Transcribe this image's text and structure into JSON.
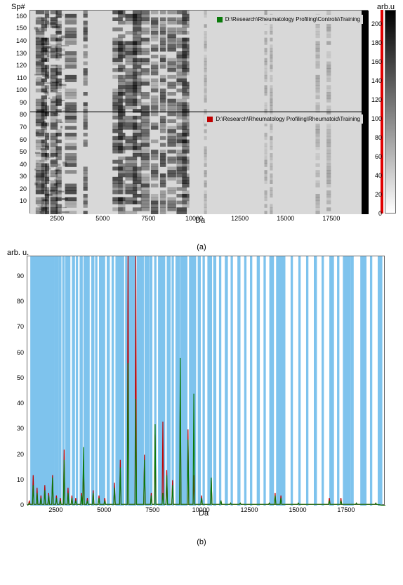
{
  "panel_a": {
    "type": "heatmap",
    "xlabel": "Da",
    "ylabel_top": "Sp#",
    "ylabel_right": "arb.u",
    "sublabel": "(a)",
    "x_range": [
      1000,
      19500
    ],
    "x_ticks": [
      2500,
      5000,
      7500,
      10000,
      12500,
      15000,
      17500
    ],
    "y_range": [
      0,
      165
    ],
    "y_ticks": [
      10,
      20,
      30,
      40,
      50,
      60,
      70,
      80,
      90,
      100,
      110,
      120,
      130,
      140,
      150,
      160
    ],
    "divider_y": 83,
    "colorbar_range": [
      0,
      215
    ],
    "colorbar_ticks": [
      0,
      20,
      40,
      60,
      80,
      100,
      120,
      140,
      160,
      180,
      200
    ],
    "background_color": "#d8d8d8",
    "band_color_dark": "#1a1a1a",
    "band_color_mid": "#555555",
    "edge_color_right": "#000000",
    "legend_top": {
      "color": "#0a7a0a",
      "text": "D:\\Research\\Rheumatology Profiling\\Controls\\Training"
    },
    "legend_bottom": {
      "color": "#c00000",
      "text": "D:\\Research\\Rheumatology Profiling\\Rheumatoid\\Training"
    },
    "dark_bands_x": [
      1300,
      1600,
      1800,
      2100,
      2400,
      2900,
      3900,
      5500,
      5800,
      6200,
      6600,
      7050,
      7600,
      8100,
      8500,
      9000,
      9300,
      10500,
      13800,
      14100,
      16600,
      17200
    ],
    "dark_band_widths": [
      60,
      40,
      30,
      50,
      40,
      80,
      30,
      70,
      50,
      80,
      60,
      60,
      50,
      40,
      60,
      70,
      50,
      20,
      20,
      20,
      30,
      30
    ],
    "noise_region_x": [
      1200,
      2800
    ],
    "fontsize_ticks": 9,
    "fontsize_label": 11
  },
  "panel_b": {
    "type": "line-spectrum",
    "xlabel": "Da",
    "ylabel": "arb. u.",
    "sublabel": "(b)",
    "x_range": [
      1000,
      19500
    ],
    "x_ticks": [
      2500,
      5000,
      7500,
      10000,
      12500,
      15000,
      17500
    ],
    "y_range": [
      0,
      98
    ],
    "y_ticks": [
      0,
      10,
      20,
      30,
      40,
      50,
      60,
      70,
      80,
      90
    ],
    "background_color": "#ffffff",
    "band_color": "#7ec3ed",
    "line_colors": {
      "green": "#0a7a0a",
      "red": "#c00000"
    },
    "fontsize_ticks": 9,
    "fontsize_label": 11,
    "blue_bands": [
      [
        1150,
        70
      ],
      [
        1300,
        60
      ],
      [
        1450,
        30
      ],
      [
        1550,
        40
      ],
      [
        1700,
        50
      ],
      [
        1850,
        30
      ],
      [
        1950,
        40
      ],
      [
        2100,
        60
      ],
      [
        2250,
        40
      ],
      [
        2400,
        50
      ],
      [
        2600,
        40
      ],
      [
        2800,
        30
      ],
      [
        2950,
        60
      ],
      [
        3100,
        30
      ],
      [
        3300,
        40
      ],
      [
        3500,
        30
      ],
      [
        3700,
        40
      ],
      [
        3900,
        60
      ],
      [
        4100,
        30
      ],
      [
        4300,
        40
      ],
      [
        4500,
        30
      ],
      [
        4700,
        50
      ],
      [
        4900,
        30
      ],
      [
        5100,
        40
      ],
      [
        5350,
        30
      ],
      [
        5550,
        70
      ],
      [
        5800,
        50
      ],
      [
        6050,
        30
      ],
      [
        6200,
        80
      ],
      [
        6450,
        40
      ],
      [
        6650,
        70
      ],
      [
        6900,
        30
      ],
      [
        7050,
        60
      ],
      [
        7300,
        40
      ],
      [
        7550,
        30
      ],
      [
        7750,
        70
      ],
      [
        8000,
        30
      ],
      [
        8200,
        50
      ],
      [
        8450,
        30
      ],
      [
        8650,
        60
      ],
      [
        8900,
        80
      ],
      [
        9150,
        30
      ],
      [
        9350,
        70
      ],
      [
        9600,
        30
      ],
      [
        9800,
        40
      ],
      [
        10050,
        30
      ],
      [
        10300,
        60
      ],
      [
        10600,
        40
      ],
      [
        10900,
        30
      ],
      [
        11200,
        40
      ],
      [
        11500,
        30
      ],
      [
        11850,
        40
      ],
      [
        12200,
        30
      ],
      [
        12500,
        30
      ],
      [
        12850,
        40
      ],
      [
        13200,
        30
      ],
      [
        13500,
        60
      ],
      [
        13850,
        120
      ],
      [
        14200,
        30
      ],
      [
        14600,
        30
      ],
      [
        15000,
        30
      ],
      [
        15400,
        30
      ],
      [
        15800,
        40
      ],
      [
        16200,
        30
      ],
      [
        16600,
        60
      ],
      [
        17000,
        30
      ],
      [
        17300,
        100
      ],
      [
        17700,
        40
      ],
      [
        18200,
        80
      ],
      [
        18700,
        30
      ],
      [
        19100,
        60
      ]
    ],
    "spectrum_green": [
      [
        1100,
        1
      ],
      [
        1300,
        8
      ],
      [
        1500,
        5
      ],
      [
        1700,
        3
      ],
      [
        1900,
        6
      ],
      [
        2100,
        4
      ],
      [
        2300,
        11
      ],
      [
        2500,
        3
      ],
      [
        2700,
        2
      ],
      [
        2900,
        18
      ],
      [
        3100,
        5
      ],
      [
        3300,
        3
      ],
      [
        3500,
        2
      ],
      [
        3800,
        4
      ],
      [
        3900,
        23
      ],
      [
        4100,
        2
      ],
      [
        4400,
        5
      ],
      [
        4700,
        3
      ],
      [
        5000,
        2
      ],
      [
        5500,
        7
      ],
      [
        5800,
        15
      ],
      [
        6200,
        56
      ],
      [
        6600,
        42
      ],
      [
        7050,
        18
      ],
      [
        7400,
        4
      ],
      [
        7600,
        32
      ],
      [
        8000,
        5
      ],
      [
        8200,
        12
      ],
      [
        8500,
        8
      ],
      [
        8900,
        58
      ],
      [
        9300,
        26
      ],
      [
        9600,
        44
      ],
      [
        10000,
        3
      ],
      [
        10500,
        11
      ],
      [
        11000,
        2
      ],
      [
        11500,
        1
      ],
      [
        12000,
        1
      ],
      [
        13500,
        1
      ],
      [
        13800,
        4
      ],
      [
        14100,
        3
      ],
      [
        15000,
        1
      ],
      [
        16600,
        2
      ],
      [
        17200,
        2
      ],
      [
        18000,
        1
      ],
      [
        19000,
        1
      ]
    ],
    "spectrum_red": [
      [
        1100,
        2
      ],
      [
        1300,
        12
      ],
      [
        1500,
        7
      ],
      [
        1700,
        4
      ],
      [
        1900,
        8
      ],
      [
        2100,
        5
      ],
      [
        2300,
        12
      ],
      [
        2500,
        4
      ],
      [
        2700,
        3
      ],
      [
        2900,
        22
      ],
      [
        3100,
        7
      ],
      [
        3300,
        4
      ],
      [
        3500,
        3
      ],
      [
        3800,
        5
      ],
      [
        3900,
        18
      ],
      [
        4100,
        3
      ],
      [
        4400,
        6
      ],
      [
        4700,
        4
      ],
      [
        5000,
        3
      ],
      [
        5500,
        9
      ],
      [
        5800,
        18
      ],
      [
        6200,
        98
      ],
      [
        6600,
        98
      ],
      [
        7050,
        20
      ],
      [
        7400,
        5
      ],
      [
        7600,
        28
      ],
      [
        8000,
        33
      ],
      [
        8200,
        14
      ],
      [
        8500,
        10
      ],
      [
        8900,
        48
      ],
      [
        9300,
        30
      ],
      [
        9600,
        12
      ],
      [
        10000,
        4
      ],
      [
        10500,
        10
      ],
      [
        11000,
        2
      ],
      [
        11500,
        1
      ],
      [
        12000,
        1
      ],
      [
        13500,
        1
      ],
      [
        13800,
        5
      ],
      [
        14100,
        4
      ],
      [
        15000,
        1
      ],
      [
        16600,
        3
      ],
      [
        17200,
        3
      ],
      [
        18000,
        1
      ],
      [
        19000,
        1
      ]
    ]
  }
}
